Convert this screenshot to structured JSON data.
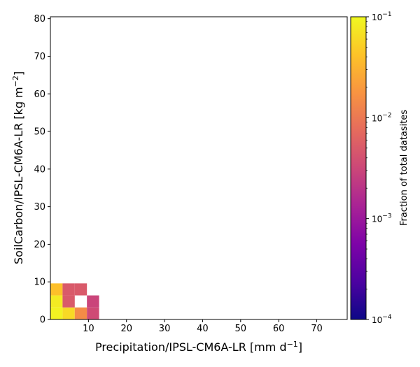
{
  "chart_data": {
    "type": "heatmap",
    "xlabel": "Precipitation/IPSL-CM6A-LR [mm d",
    "xlabel_sup": "−1",
    "xlabel_end": "]",
    "ylabel": "SoilCarbon/IPSL-CM6A-LR [kg m",
    "ylabel_sup": "−2",
    "ylabel_end": "]",
    "xlim": [
      0,
      78
    ],
    "ylim": [
      0,
      80.5
    ],
    "x_ticks": [
      10,
      20,
      30,
      40,
      50,
      60,
      70
    ],
    "y_ticks": [
      0,
      10,
      20,
      30,
      40,
      50,
      60,
      70,
      80
    ],
    "bin_width_x": 3.2,
    "bin_width_y": 3.2,
    "cells": [
      {
        "x0": 0.0,
        "y0": 0.0,
        "value": 0.09
      },
      {
        "x0": 3.2,
        "y0": 0.0,
        "value": 0.06
      },
      {
        "x0": 6.4,
        "y0": 0.0,
        "value": 0.015
      },
      {
        "x0": 9.6,
        "y0": 0.0,
        "value": 0.0035
      },
      {
        "x0": 0.0,
        "y0": 3.2,
        "value": 0.08
      },
      {
        "x0": 3.2,
        "y0": 3.2,
        "value": 0.005
      },
      {
        "x0": 9.6,
        "y0": 3.2,
        "value": 0.003
      },
      {
        "x0": 0.0,
        "y0": 6.4,
        "value": 0.04
      },
      {
        "x0": 3.2,
        "y0": 6.4,
        "value": 0.005
      },
      {
        "x0": 6.4,
        "y0": 6.4,
        "value": 0.005
      }
    ],
    "colorbar": {
      "label": "Fraction of total datasites",
      "scale": "log",
      "colormap": "plasma",
      "vmin": 0.0001,
      "vmax": 0.1,
      "ticks": [
        {
          "value": 0.1,
          "base": "10",
          "exp": "−1"
        },
        {
          "value": 0.01,
          "base": "10",
          "exp": "−2"
        },
        {
          "value": 0.001,
          "base": "10",
          "exp": "−3"
        },
        {
          "value": 0.0001,
          "base": "10",
          "exp": "−4"
        }
      ]
    }
  }
}
